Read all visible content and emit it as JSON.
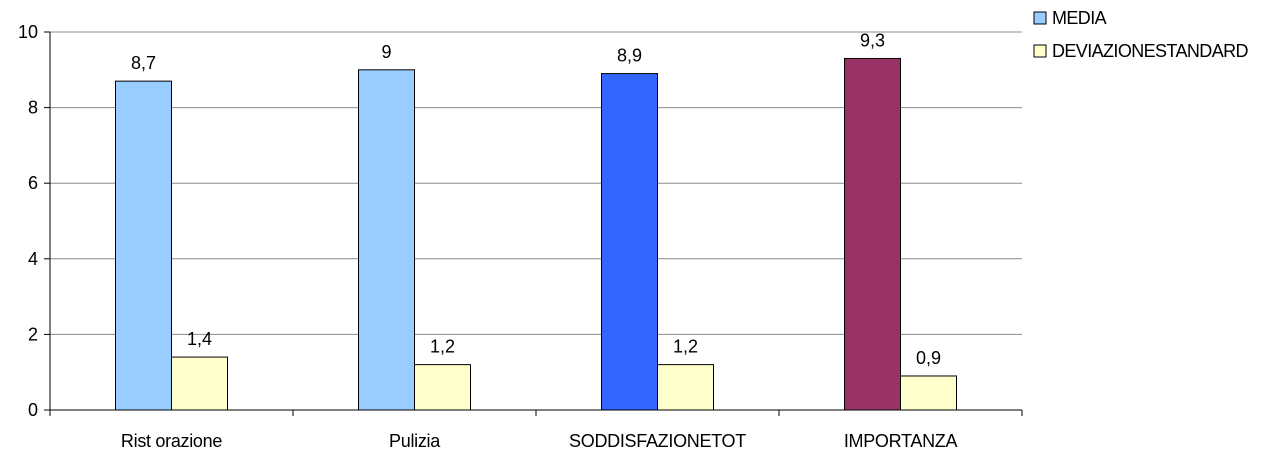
{
  "chart_data": {
    "type": "bar",
    "categories": [
      "Rist orazione",
      "Pulizia",
      "SODDISFAZIONETOT",
      "IMPORTANZA"
    ],
    "ylim": [
      0,
      10
    ],
    "yticks": [
      0,
      2,
      4,
      6,
      8,
      10
    ],
    "grid": true,
    "legend_position": "top-right",
    "series": [
      {
        "name": "MEDIA",
        "values": [
          8.7,
          9,
          8.9,
          9.3
        ],
        "labels": [
          "8,7",
          "9",
          "8,9",
          "9,3"
        ],
        "color": "#99CCFF",
        "point_colors": [
          "#99CCFF",
          "#99CCFF",
          "#3366FF",
          "#993366"
        ]
      },
      {
        "name": "DEVIAZIONESTANDARD",
        "values": [
          1.4,
          1.2,
          1.2,
          0.9
        ],
        "labels": [
          "1,4",
          "1,2",
          "1,2",
          "0,9"
        ],
        "color": "#FFFFCC",
        "point_colors": [
          "#FFFFCC",
          "#FFFFCC",
          "#FFFFCC",
          "#FFFFCC"
        ]
      }
    ]
  }
}
